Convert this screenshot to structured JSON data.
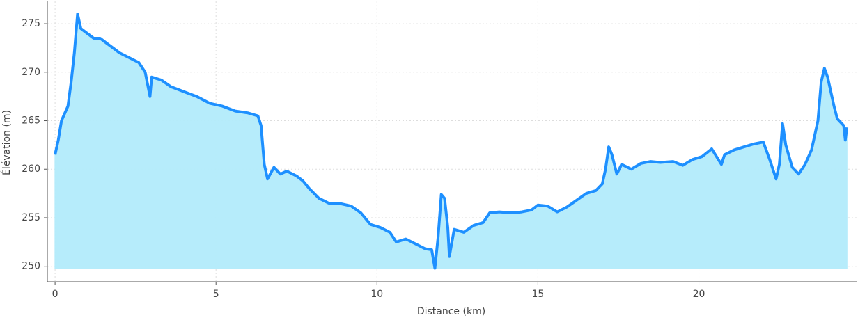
{
  "chart_data": {
    "type": "area",
    "x_label": "Distance (km)",
    "y_label": "Élévation (m)",
    "line_color": "#1e90ff",
    "fill_color": "#b3ecfb",
    "grid": true,
    "xlim": [
      -0.24,
      24.9
    ],
    "ylim": [
      248.4,
      277.3
    ],
    "xticks": [
      0,
      5,
      10,
      15,
      20
    ],
    "yticks": [
      250,
      255,
      260,
      265,
      270,
      275
    ],
    "x": [
      0,
      0.1,
      0.2,
      0.4,
      0.5,
      0.6,
      0.7,
      0.8,
      1.0,
      1.2,
      1.4,
      1.6,
      1.8,
      2.0,
      2.3,
      2.6,
      2.8,
      2.95,
      3.0,
      3.3,
      3.6,
      4.0,
      4.4,
      4.8,
      5.2,
      5.6,
      6.0,
      6.3,
      6.4,
      6.5,
      6.6,
      6.8,
      7.0,
      7.2,
      7.5,
      7.7,
      7.9,
      8.2,
      8.5,
      8.8,
      9.2,
      9.5,
      9.8,
      10.1,
      10.4,
      10.6,
      10.9,
      11.2,
      11.5,
      11.7,
      11.8,
      11.9,
      12.0,
      12.1,
      12.2,
      12.25,
      12.4,
      12.7,
      13.0,
      13.3,
      13.5,
      13.8,
      14.2,
      14.5,
      14.8,
      15.0,
      15.3,
      15.6,
      15.9,
      16.2,
      16.5,
      16.8,
      17.0,
      17.1,
      17.2,
      17.3,
      17.45,
      17.6,
      17.9,
      18.2,
      18.5,
      18.8,
      19.2,
      19.5,
      19.8,
      20.1,
      20.4,
      20.7,
      20.8,
      21.1,
      21.4,
      21.7,
      22.0,
      22.2,
      22.4,
      22.5,
      22.6,
      22.7,
      22.9,
      23.1,
      23.3,
      23.5,
      23.7,
      23.8,
      23.9,
      24.0,
      24.2,
      24.3,
      24.5,
      24.55,
      24.6
    ],
    "y": [
      261.5,
      263,
      265,
      266.5,
      269,
      272,
      276,
      274.5,
      274,
      273.5,
      273.5,
      273,
      272.5,
      272,
      271.5,
      271,
      270,
      267.5,
      269.5,
      269.2,
      268.5,
      268,
      267.5,
      266.8,
      266.5,
      266,
      265.8,
      265.5,
      264.5,
      260.5,
      259,
      260.2,
      259.5,
      259.8,
      259.3,
      258.8,
      258,
      257,
      256.5,
      256.5,
      256.2,
      255.5,
      254.3,
      254,
      253.5,
      252.5,
      252.8,
      252.3,
      251.8,
      251.7,
      249.8,
      253,
      257.4,
      257,
      254,
      251,
      253.8,
      253.5,
      254.2,
      254.5,
      255.5,
      255.6,
      255.5,
      255.6,
      255.8,
      256.3,
      256.2,
      255.6,
      256.1,
      256.8,
      257.5,
      257.8,
      258.5,
      260,
      262.3,
      261.5,
      259.5,
      260.5,
      260,
      260.6,
      260.8,
      260.7,
      260.8,
      260.4,
      261,
      261.3,
      262.1,
      260.5,
      261.5,
      262,
      262.3,
      262.6,
      262.8,
      261,
      259,
      260.5,
      264.7,
      262.5,
      260.2,
      259.5,
      260.5,
      262,
      265,
      269,
      270.4,
      269.5,
      266.5,
      265.2,
      264.5,
      263,
      264.3
    ]
  }
}
